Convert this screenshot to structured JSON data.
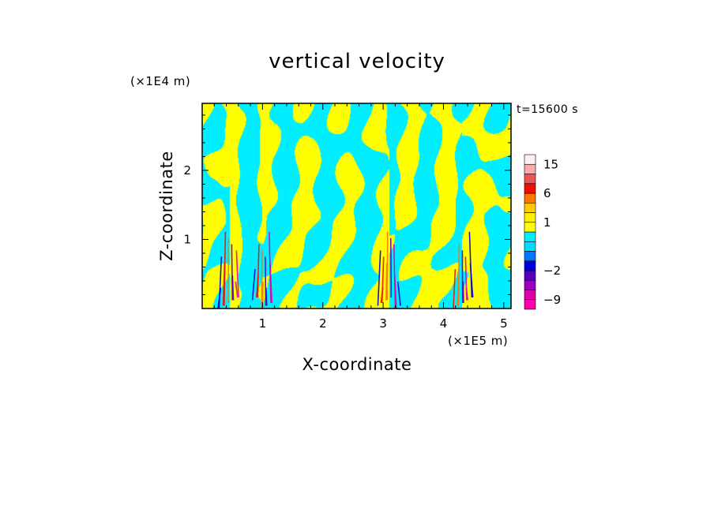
{
  "chart_data": {
    "type": "heatmap",
    "title": "vertical velocity",
    "xlabel": "X-coordinate",
    "ylabel": "Z-coordinate",
    "x_unit": "(×1E5 m)",
    "y_unit": "(×1E4 m)",
    "time_label": "t=15600 s",
    "xlim": [
      0,
      5.12
    ],
    "ylim": [
      0,
      2.97
    ],
    "x_ticks": [
      1,
      2,
      3,
      4,
      5
    ],
    "y_ticks": [
      1,
      2
    ],
    "colorbar": {
      "levels": [
        -12,
        -9,
        -6,
        -4,
        -2,
        -1,
        -0.5,
        0,
        0.5,
        1,
        2,
        4,
        6,
        9,
        12,
        15,
        20
      ],
      "colors": [
        "#ff00aa",
        "#dd00aa",
        "#9900bb",
        "#5500bb",
        "#0000dd",
        "#0077ff",
        "#00ddff",
        "#00eeff",
        "#ffff00",
        "#ffee00",
        "#ffcc00",
        "#ff7700",
        "#ee1100",
        "#ee5555",
        "#ffaaaa",
        "#ffeeee"
      ],
      "tick_labels": [
        {
          "label": "15",
          "value": 15
        },
        {
          "label": "6",
          "value": 6
        },
        {
          "label": "1",
          "value": 1
        },
        {
          "label": "−2",
          "value": -2
        },
        {
          "label": "−9",
          "value": -9
        }
      ]
    },
    "field_colors": {
      "positive": "#ffff00",
      "negative": "#00eeff"
    },
    "updraft_columns_x": [
      0.45,
      1.02,
      3.1,
      4.3
    ]
  }
}
